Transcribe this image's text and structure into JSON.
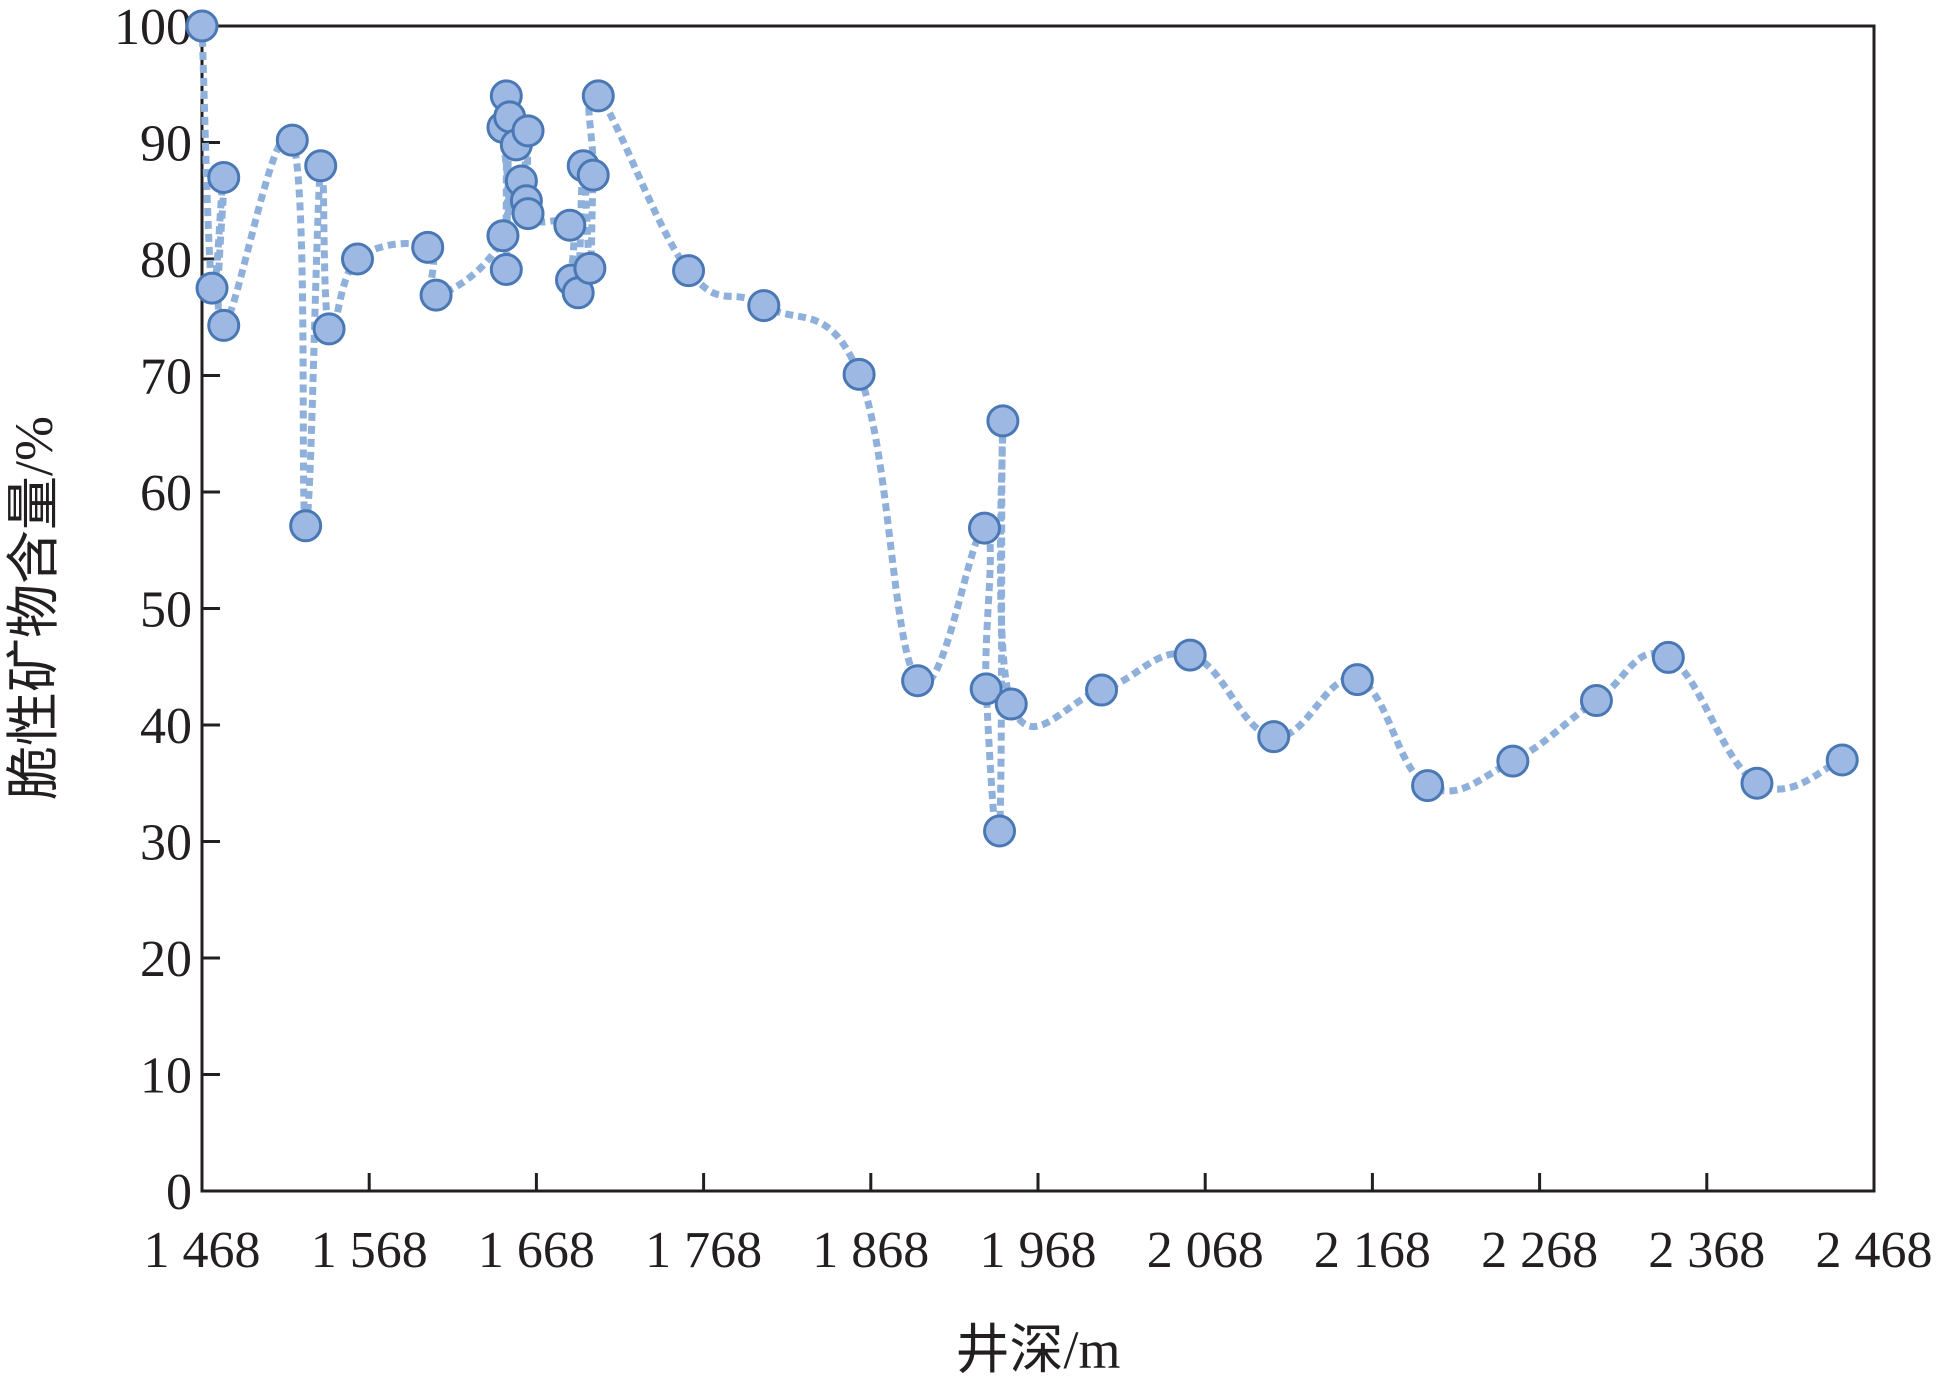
{
  "chart_data": {
    "type": "scatter",
    "xlabel": "井深/m",
    "ylabel": "脆性矿物含量/%",
    "xlim": [
      1468,
      2468
    ],
    "ylim": [
      0,
      100
    ],
    "x_ticks": [
      1468,
      1568,
      1668,
      1768,
      1868,
      1968,
      2068,
      2168,
      2268,
      2368,
      2468
    ],
    "x_tick_labels": [
      "1 468",
      "1 568",
      "1 668",
      "1 768",
      "1 868",
      "1 968",
      "2 068",
      "2 168",
      "2 268",
      "2 368",
      "2 468"
    ],
    "y_ticks": [
      0,
      10,
      20,
      30,
      40,
      50,
      60,
      70,
      80,
      90,
      100
    ],
    "y_tick_labels": [
      "0",
      "10",
      "20",
      "30",
      "40",
      "50",
      "60",
      "70",
      "80",
      "90",
      "100"
    ],
    "grid": false,
    "legend": "none",
    "line_style": "dotted, smoothed",
    "colors": {
      "marker_fill": "#9db8e2",
      "marker_edge": "#4a78b5",
      "line": "#8fb0db",
      "axis": "#231f20"
    },
    "series": [
      {
        "points": [
          [
            1468,
            100
          ],
          [
            1474,
            77.5
          ],
          [
            1481,
            87
          ],
          [
            1481,
            74.3
          ],
          [
            1522,
            90.2
          ],
          [
            1530,
            57.1
          ],
          [
            1539,
            88
          ],
          [
            1544,
            74
          ],
          [
            1561,
            80
          ],
          [
            1603,
            81
          ],
          [
            1608,
            76.9
          ],
          [
            1648,
            82
          ],
          [
            1648,
            91.3
          ],
          [
            1650,
            94
          ],
          [
            1650,
            79.1
          ],
          [
            1652,
            92.2
          ],
          [
            1656,
            89.8
          ],
          [
            1659,
            86.7
          ],
          [
            1662,
            85
          ],
          [
            1663,
            91
          ],
          [
            1663,
            83.9
          ],
          [
            1688,
            82.9
          ],
          [
            1689,
            78.2
          ],
          [
            1693,
            77.1
          ],
          [
            1696,
            88
          ],
          [
            1700,
            79.2
          ],
          [
            1702,
            87.2
          ],
          [
            1705,
            94
          ],
          [
            1759,
            79
          ],
          [
            1804,
            76
          ],
          [
            1861,
            70.1
          ],
          [
            1896,
            43.8
          ],
          [
            1936,
            56.9
          ],
          [
            1937,
            43.1
          ],
          [
            1945,
            30.9
          ],
          [
            1947,
            66.1
          ],
          [
            1952,
            41.8
          ],
          [
            2006,
            43
          ],
          [
            2059,
            46
          ],
          [
            2109,
            39
          ],
          [
            2159,
            43.9
          ],
          [
            2201,
            34.8
          ],
          [
            2252,
            36.9
          ],
          [
            2302,
            42.1
          ],
          [
            2345,
            45.8
          ],
          [
            2398,
            35
          ],
          [
            2449,
            37
          ]
        ]
      }
    ]
  }
}
